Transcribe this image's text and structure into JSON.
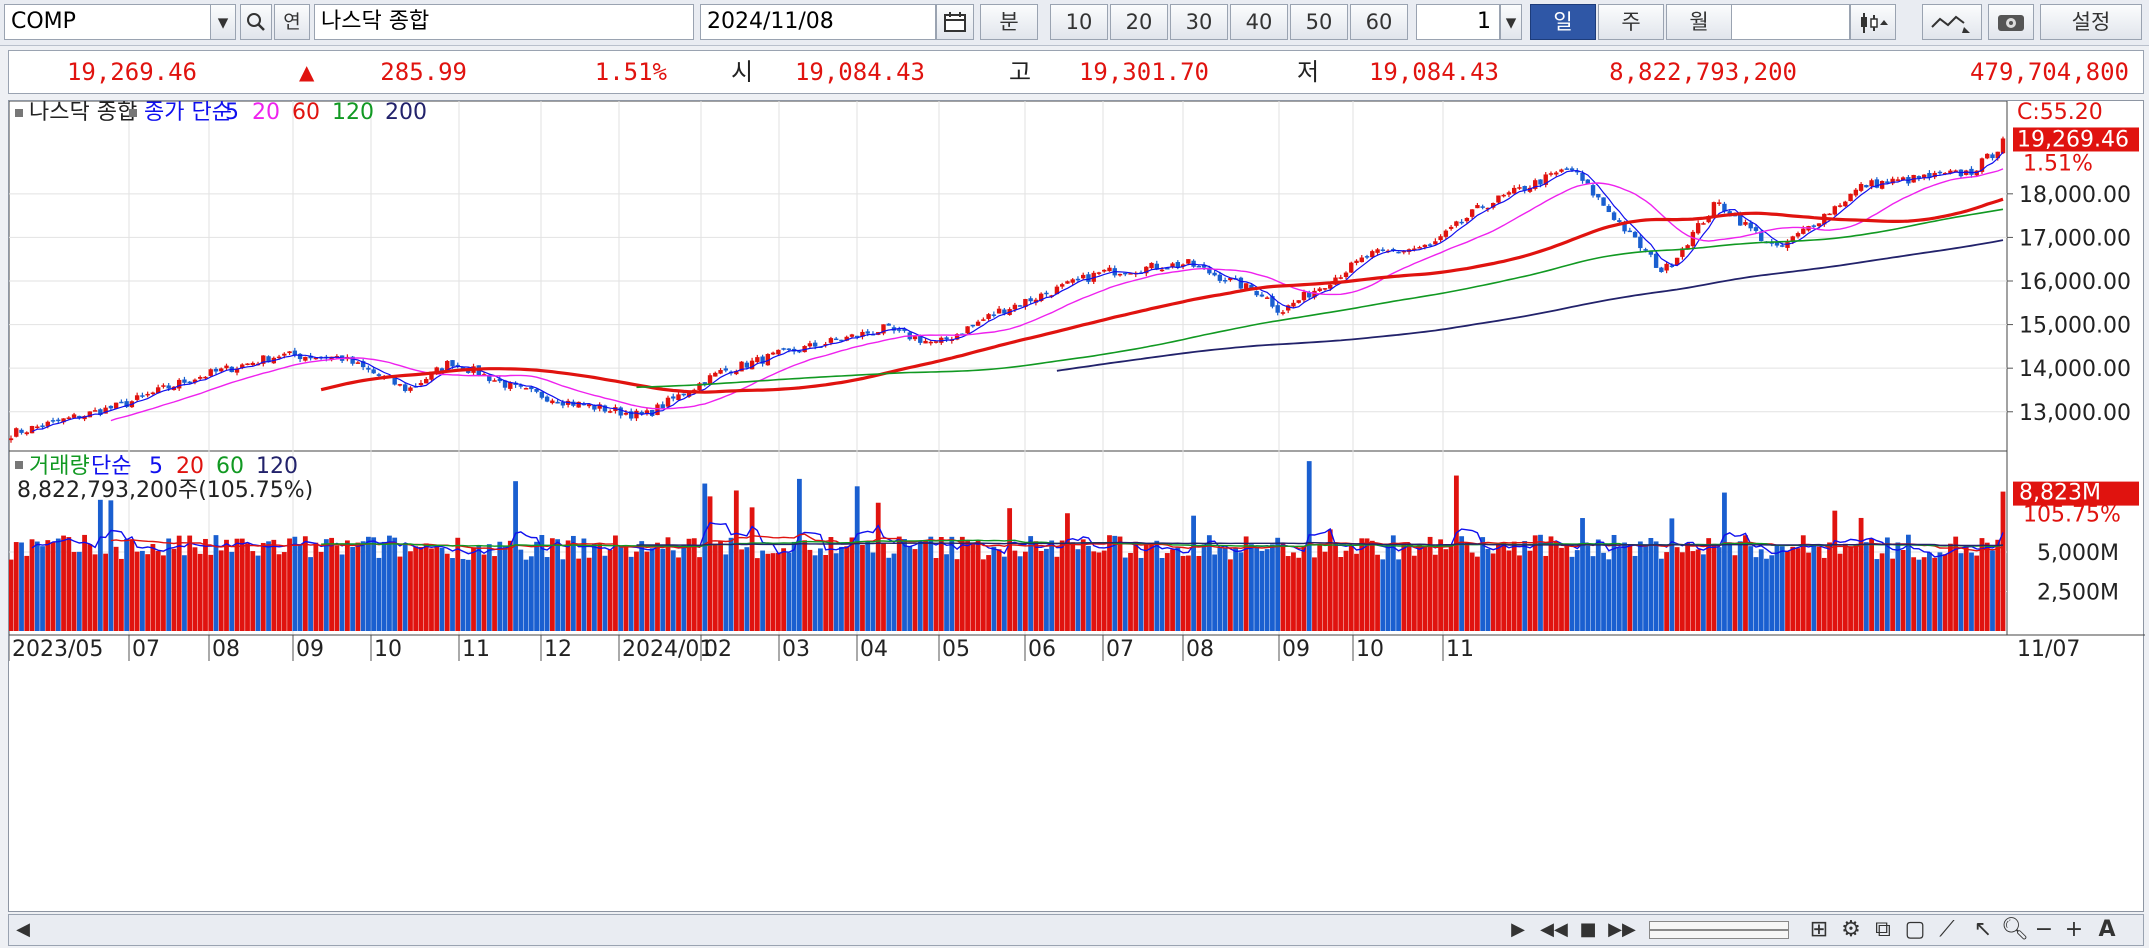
{
  "toolbar": {
    "symbol": "COMP",
    "name": "나스닥 종합",
    "date": "2024/11/08",
    "minute_label": "분",
    "intervals": [
      "10",
      "20",
      "30",
      "40",
      "50",
      "60"
    ],
    "count": "1",
    "periods": [
      "일",
      "주",
      "월"
    ],
    "settings_label": "설정",
    "link_label": "연"
  },
  "quote": {
    "close": "19,269.46",
    "change": "285.99",
    "pct": "1.51%",
    "open_label": "시",
    "open": "19,084.43",
    "high_label": "고",
    "high": "19,301.70",
    "low_label": "저",
    "low": "19,084.43",
    "volume": "8,822,793,200",
    "amount": "479,704,800"
  },
  "price_panel": {
    "legend_name": "나스닥 종합",
    "ma_prefix": "종가 단순",
    "ma_periods": [
      "5",
      "20",
      "60",
      "120",
      "200"
    ],
    "ma_colors": [
      "#1010ee",
      "#ee22ee",
      "#e0130f",
      "#119922",
      "#22226b"
    ],
    "last_tag": "19,269.46",
    "pct_tag": "1.51%",
    "top_tag": "C:55.20",
    "y_ticks": [
      "18,000.00",
      "17,000.00",
      "16,000.00",
      "15,000.00",
      "14,000.00",
      "13,000.00"
    ]
  },
  "volume_panel": {
    "legend_name": "거래량",
    "ma_prefix": "단순",
    "ma_periods": [
      "5",
      "20",
      "60",
      "120"
    ],
    "ma_colors": [
      "#1010ee",
      "#e0130f",
      "#119922",
      "#22226b"
    ],
    "detail": "8,822,793,200주(105.75%)",
    "last_tag": "8,823M",
    "pct_tag": "105.75%",
    "y_ticks": [
      "5,000M",
      "2,500M"
    ]
  },
  "x_axis": {
    "labels": [
      "2023/05",
      "07",
      "08",
      "09",
      "10",
      "11",
      "12",
      "2024/01",
      "02",
      "03",
      "04",
      "05",
      "06",
      "07",
      "08",
      "09",
      "10",
      "11"
    ],
    "last_date": "11/07"
  },
  "chart_data": {
    "type": "candlestick",
    "x_range": [
      "2023/05",
      "2024/11/08"
    ],
    "price_ylim": [
      12100,
      19900
    ],
    "volume_ylim": [
      0,
      10000
    ],
    "volume_unit": "M",
    "price_anchors": [
      [
        "2023-05-01",
        12500
      ],
      [
        "2023-06-01",
        13150
      ],
      [
        "2023-06-20",
        13750
      ],
      [
        "2023-07-15",
        14300
      ],
      [
        "2023-08-01",
        14250
      ],
      [
        "2023-08-20",
        13500
      ],
      [
        "2023-09-01",
        14150
      ],
      [
        "2023-09-20",
        13500
      ],
      [
        "2023-10-05",
        13200
      ],
      [
        "2023-10-25",
        12900
      ],
      [
        "2023-11-15",
        13900
      ],
      [
        "2023-12-01",
        14300
      ],
      [
        "2023-12-31",
        14900
      ],
      [
        "2024-01-15",
        14550
      ],
      [
        "2024-02-01",
        15300
      ],
      [
        "2024-03-01",
        16200
      ],
      [
        "2024-03-25",
        16400
      ],
      [
        "2024-04-15",
        15700
      ],
      [
        "2024-04-20",
        15300
      ],
      [
        "2024-05-15",
        16600
      ],
      [
        "2024-06-01",
        16800
      ],
      [
        "2024-06-15",
        17700
      ],
      [
        "2024-07-10",
        18600
      ],
      [
        "2024-08-05",
        16200
      ],
      [
        "2024-08-20",
        17800
      ],
      [
        "2024-09-06",
        16700
      ],
      [
        "2024-09-30",
        18200
      ],
      [
        "2024-10-30",
        18500
      ],
      [
        "2024-11-06",
        18983
      ],
      [
        "2024-11-08",
        19269
      ]
    ],
    "last_candle": {
      "date": "2024/11/08",
      "open": 19084.43,
      "high": 19301.7,
      "low": 19084.43,
      "close": 19269.46,
      "volume": 8822793200
    }
  }
}
